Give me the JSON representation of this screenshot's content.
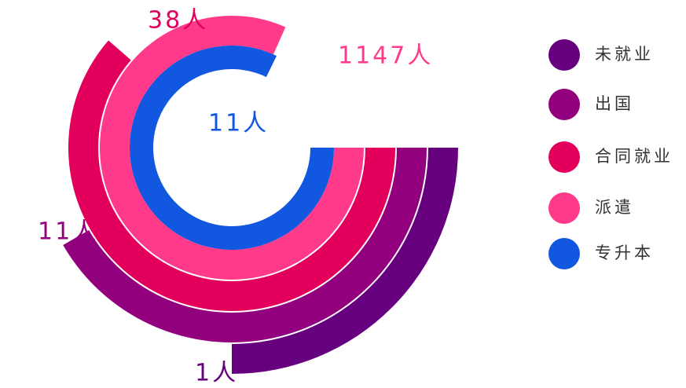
{
  "chart_data": {
    "type": "ring",
    "categories": [
      "未就业",
      "出国",
      "合同就业",
      "派遣",
      "专升本"
    ],
    "values": [
      1,
      11,
      38,
      1147,
      11
    ],
    "value_labels": [
      "1人",
      "11人",
      "38人",
      "1147人",
      "11人"
    ],
    "colors": [
      "#66007f",
      "#93007e",
      "#e2005c",
      "#ff3a8a",
      "#1257e0"
    ],
    "legend": "right"
  }
}
